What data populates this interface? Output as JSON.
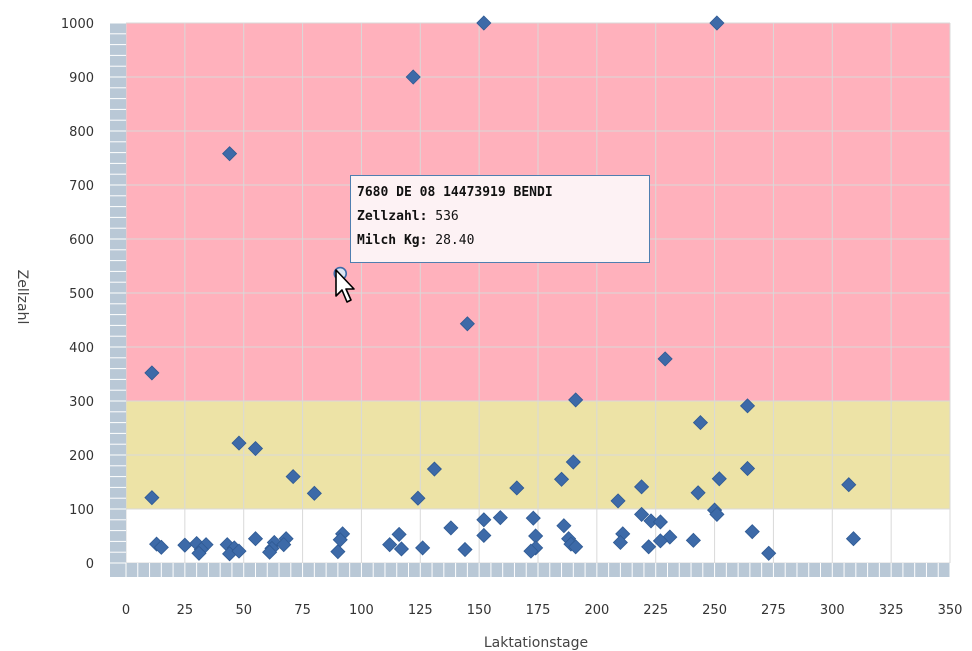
{
  "colors": {
    "red_band": "#ffb1bc",
    "yellow_band": "#ede3a6",
    "grid": "#d9d9d9",
    "axis_bar": "#b9c8d6",
    "marker": "#3d6aa8",
    "tooltip_border": "#4f7fb0",
    "tooltip_bg": "#fdf2f4"
  },
  "tooltip": {
    "title": "7680 DE 08 14473919 BENDI",
    "zell_label": "Zellzahl:",
    "zell_value": "536",
    "milch_label": "Milch Kg:",
    "milch_value": "28.40"
  },
  "chart_data": {
    "type": "scatter",
    "xlabel": "Laktationstage",
    "ylabel": "Zellzahl",
    "xlim": [
      0,
      350
    ],
    "ylim": [
      0,
      1000
    ],
    "x_ticks": [
      0,
      25,
      50,
      75,
      100,
      125,
      150,
      175,
      200,
      225,
      250,
      275,
      300,
      325,
      350
    ],
    "y_ticks": [
      0,
      100,
      200,
      300,
      400,
      500,
      600,
      700,
      800,
      900,
      1000
    ],
    "bands": [
      {
        "from": 300,
        "to": 1000,
        "color": "#ffb1bc"
      },
      {
        "from": 100,
        "to": 300,
        "color": "#ede3a6"
      }
    ],
    "grid": true,
    "highlighted_point": {
      "x": 91,
      "y": 536
    },
    "points": [
      {
        "x": 152,
        "y": 1000
      },
      {
        "x": 251,
        "y": 1000
      },
      {
        "x": 122,
        "y": 900
      },
      {
        "x": 44,
        "y": 758
      },
      {
        "x": 145,
        "y": 443
      },
      {
        "x": 229,
        "y": 378
      },
      {
        "x": 11,
        "y": 352
      },
      {
        "x": 191,
        "y": 302
      },
      {
        "x": 264,
        "y": 291
      },
      {
        "x": 244,
        "y": 260
      },
      {
        "x": 48,
        "y": 222
      },
      {
        "x": 55,
        "y": 212
      },
      {
        "x": 190,
        "y": 187
      },
      {
        "x": 131,
        "y": 174
      },
      {
        "x": 264,
        "y": 175
      },
      {
        "x": 71,
        "y": 160
      },
      {
        "x": 185,
        "y": 155
      },
      {
        "x": 252,
        "y": 156
      },
      {
        "x": 307,
        "y": 145
      },
      {
        "x": 166,
        "y": 139
      },
      {
        "x": 219,
        "y": 141
      },
      {
        "x": 243,
        "y": 130
      },
      {
        "x": 80,
        "y": 129
      },
      {
        "x": 11,
        "y": 121
      },
      {
        "x": 124,
        "y": 120
      },
      {
        "x": 209,
        "y": 115
      },
      {
        "x": 250,
        "y": 98
      },
      {
        "x": 251,
        "y": 90
      },
      {
        "x": 219,
        "y": 90
      },
      {
        "x": 159,
        "y": 84
      },
      {
        "x": 152,
        "y": 80
      },
      {
        "x": 173,
        "y": 83
      },
      {
        "x": 223,
        "y": 78
      },
      {
        "x": 227,
        "y": 76
      },
      {
        "x": 186,
        "y": 69
      },
      {
        "x": 138,
        "y": 65
      },
      {
        "x": 266,
        "y": 58
      },
      {
        "x": 92,
        "y": 54
      },
      {
        "x": 116,
        "y": 53
      },
      {
        "x": 152,
        "y": 51
      },
      {
        "x": 174,
        "y": 50
      },
      {
        "x": 211,
        "y": 54
      },
      {
        "x": 231,
        "y": 48
      },
      {
        "x": 241,
        "y": 42
      },
      {
        "x": 188,
        "y": 45
      },
      {
        "x": 309,
        "y": 45
      },
      {
        "x": 55,
        "y": 45
      },
      {
        "x": 68,
        "y": 45
      },
      {
        "x": 91,
        "y": 43
      },
      {
        "x": 227,
        "y": 41
      },
      {
        "x": 13,
        "y": 35
      },
      {
        "x": 25,
        "y": 33
      },
      {
        "x": 30,
        "y": 36
      },
      {
        "x": 34,
        "y": 34
      },
      {
        "x": 43,
        "y": 34
      },
      {
        "x": 63,
        "y": 38
      },
      {
        "x": 67,
        "y": 34
      },
      {
        "x": 112,
        "y": 34
      },
      {
        "x": 189,
        "y": 35
      },
      {
        "x": 210,
        "y": 38
      },
      {
        "x": 15,
        "y": 29
      },
      {
        "x": 32,
        "y": 25
      },
      {
        "x": 46,
        "y": 28
      },
      {
        "x": 62,
        "y": 27
      },
      {
        "x": 117,
        "y": 26
      },
      {
        "x": 126,
        "y": 28
      },
      {
        "x": 144,
        "y": 25
      },
      {
        "x": 174,
        "y": 28
      },
      {
        "x": 191,
        "y": 30
      },
      {
        "x": 222,
        "y": 30
      },
      {
        "x": 31,
        "y": 18
      },
      {
        "x": 44,
        "y": 17
      },
      {
        "x": 48,
        "y": 22
      },
      {
        "x": 61,
        "y": 20
      },
      {
        "x": 90,
        "y": 21
      },
      {
        "x": 172,
        "y": 22
      },
      {
        "x": 273,
        "y": 18
      }
    ]
  }
}
